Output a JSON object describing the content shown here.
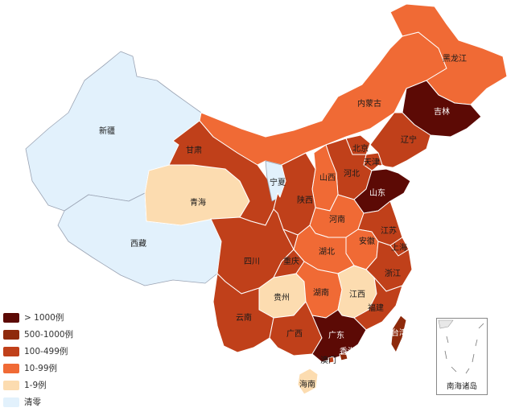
{
  "colors": {
    "over_1000": "#5c0a05",
    "r500_1000": "#8e2a0c",
    "r100_499": "#c0401a",
    "r10_99": "#f06a35",
    "r1_9": "#fcdcb0",
    "cleared": "#e2f1fc"
  },
  "legend": {
    "items": [
      {
        "label": "> 1000例",
        "color": "#5c0a05"
      },
      {
        "label": "500-1000例",
        "color": "#8e2a0c"
      },
      {
        "label": "100-499例",
        "color": "#c0401a"
      },
      {
        "label": "10-99例",
        "color": "#f06a35"
      },
      {
        "label": "1-9例",
        "color": "#fcdcb0"
      },
      {
        "label": "清零",
        "color": "#e2f1fc"
      }
    ]
  },
  "provinces": {
    "xinjiang": {
      "name": "新疆",
      "level": "cleared"
    },
    "xizang": {
      "name": "西藏",
      "level": "cleared"
    },
    "qinghai": {
      "name": "青海",
      "level": "r1_9"
    },
    "gansu": {
      "name": "甘肃",
      "level": "r100_499"
    },
    "neimenggu": {
      "name": "内蒙古",
      "level": "r10_99"
    },
    "heilongjiang": {
      "name": "黑龙江",
      "level": "r10_99"
    },
    "jilin": {
      "name": "吉林",
      "level": "over_1000"
    },
    "liaoning": {
      "name": "辽宁",
      "level": "r100_499"
    },
    "beijing": {
      "name": "北京",
      "level": "r100_499"
    },
    "tianjin": {
      "name": "天津",
      "level": "r100_499"
    },
    "hebei": {
      "name": "河北",
      "level": "r100_499"
    },
    "shanxi": {
      "name": "山西",
      "level": "r10_99"
    },
    "ningxia": {
      "name": "宁夏",
      "level": "cleared"
    },
    "shaanxi": {
      "name": "陕西",
      "level": "r100_499"
    },
    "shandong": {
      "name": "山东",
      "level": "over_1000"
    },
    "henan": {
      "name": "河南",
      "level": "r10_99"
    },
    "jiangsu": {
      "name": "江苏",
      "level": "r100_499"
    },
    "anhui": {
      "name": "安徽",
      "level": "r10_99"
    },
    "shanghai": {
      "name": "上海",
      "level": "r100_499"
    },
    "hubei": {
      "name": "湖北",
      "level": "r10_99"
    },
    "zhejiang": {
      "name": "浙江",
      "level": "r100_499"
    },
    "sichuan": {
      "name": "四川",
      "level": "r100_499"
    },
    "chongqing": {
      "name": "重庆",
      "level": "r100_499"
    },
    "guizhou": {
      "name": "贵州",
      "level": "r1_9"
    },
    "hunan": {
      "name": "湖南",
      "level": "r10_99"
    },
    "jiangxi": {
      "name": "江西",
      "level": "r1_9"
    },
    "fujian": {
      "name": "福建",
      "level": "r100_499"
    },
    "yunnan": {
      "name": "云南",
      "level": "r100_499"
    },
    "guangxi": {
      "name": "广西",
      "level": "r100_499"
    },
    "guangdong": {
      "name": "广东",
      "level": "over_1000"
    },
    "hainan": {
      "name": "海南",
      "level": "r1_9"
    },
    "taiwan": {
      "name": "台湾",
      "level": "r500_1000"
    },
    "hongkong": {
      "name": "香港",
      "level": "r500_1000"
    },
    "macau": {
      "name": "澳门",
      "level": "r100_499"
    }
  },
  "inset": {
    "label": "南海诸岛"
  }
}
